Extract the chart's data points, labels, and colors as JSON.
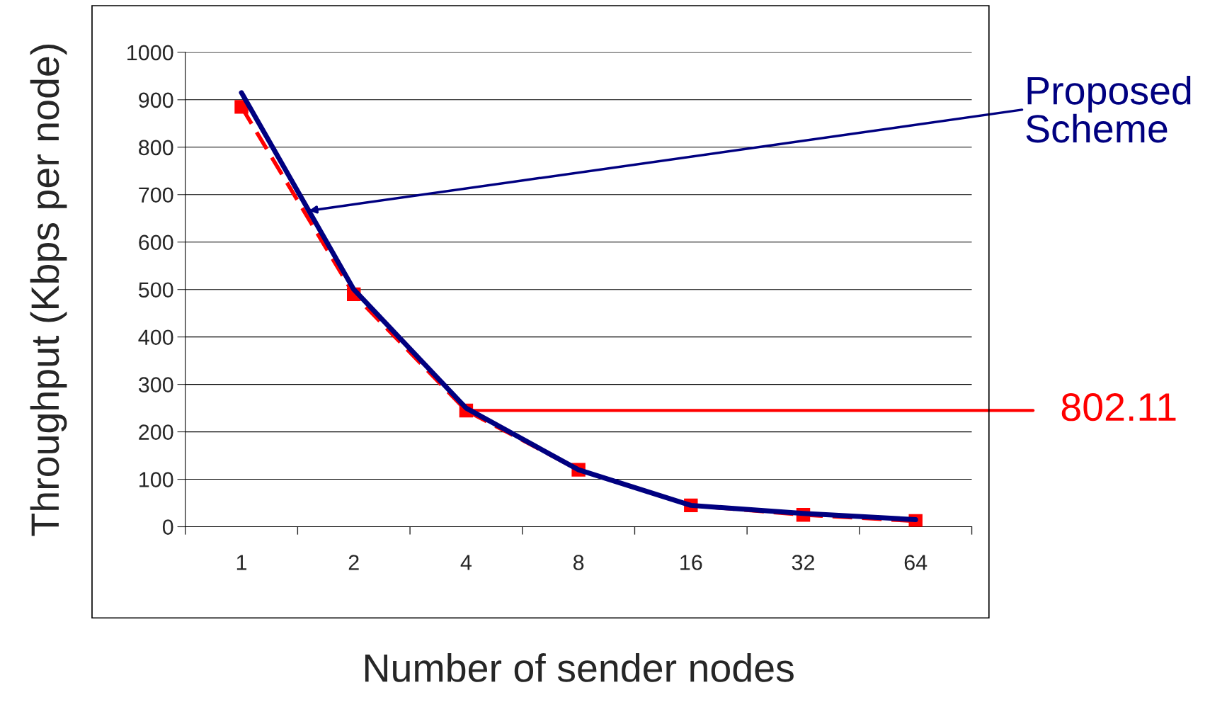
{
  "chart_data": {
    "type": "line",
    "xlabel": "Number of sender nodes",
    "ylabel": "Throughput (Kbps per node)",
    "categories": [
      "1",
      "2",
      "4",
      "8",
      "16",
      "32",
      "64"
    ],
    "series": [
      {
        "name": "Proposed Scheme",
        "color": "#000080",
        "values": [
          915,
          500,
          250,
          120,
          45,
          28,
          15
        ],
        "marker": "none",
        "line_style": "solid"
      },
      {
        "name": "802.11",
        "color": "#ff0000",
        "values": [
          885,
          490,
          245,
          120,
          45,
          25,
          12
        ],
        "marker": "square",
        "line_style": "dashed"
      }
    ],
    "ylim": [
      0,
      1000
    ],
    "yticks": [
      0,
      100,
      200,
      300,
      400,
      500,
      600,
      700,
      800,
      900,
      1000
    ],
    "grid": "y",
    "legend": false
  }
}
